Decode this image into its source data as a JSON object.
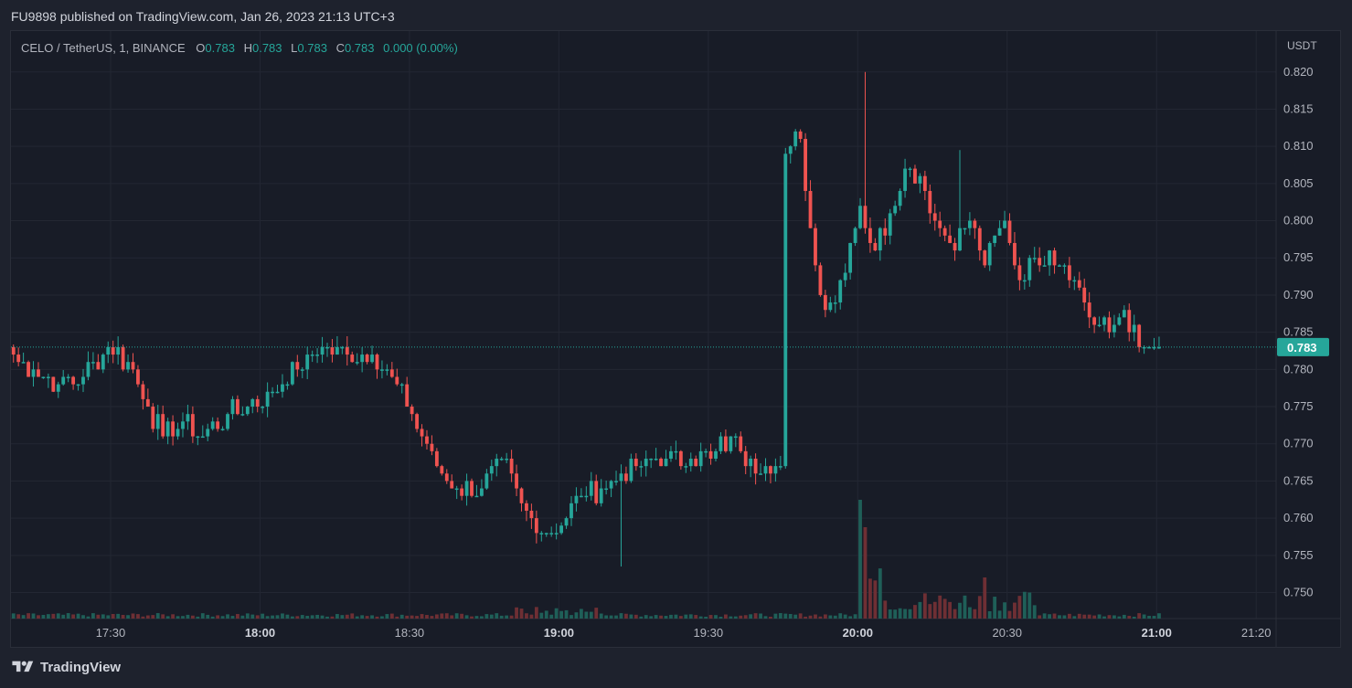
{
  "header": {
    "published": "FU9898 published on TradingView.com, Jan 26, 2023 21:13 UTC+3"
  },
  "legend": {
    "symbol": "CELO / TetherUS, 1, BINANCE",
    "o_label": "O",
    "o_value": "0.783",
    "h_label": "H",
    "h_value": "0.783",
    "l_label": "L",
    "l_value": "0.783",
    "c_label": "C",
    "c_value": "0.783",
    "change": "0.000 (0.00%)"
  },
  "footer": {
    "brand": "TradingView",
    "logo_icon": "tradingview-logo-icon"
  },
  "colors": {
    "background": "#181c27",
    "grid": "#232733",
    "up": "#26a69a",
    "down": "#ef5350",
    "up_volume": "#1f5f58",
    "down_volume": "#6e2f34",
    "text": "#b2b5be",
    "price_label": "#26a69a"
  },
  "chart_data": {
    "type": "candlestick",
    "currency": "USDT",
    "price_axis": {
      "ylim": [
        0.7465,
        0.8255
      ],
      "ticks": [
        "0.820",
        "0.815",
        "0.810",
        "0.805",
        "0.800",
        "0.795",
        "0.790",
        "0.785",
        "0.780",
        "0.775",
        "0.770",
        "0.765",
        "0.760",
        "0.755",
        "0.750"
      ]
    },
    "current_price": "0.783",
    "time_axis": {
      "range_minutes": [
        "17:10",
        "21:24"
      ],
      "ticks": [
        {
          "label": "17:30",
          "bold": false
        },
        {
          "label": "18:00",
          "bold": true
        },
        {
          "label": "18:30",
          "bold": false
        },
        {
          "label": "19:00",
          "bold": true
        },
        {
          "label": "19:30",
          "bold": false
        },
        {
          "label": "20:00",
          "bold": true
        },
        {
          "label": "20:30",
          "bold": false
        },
        {
          "label": "21:00",
          "bold": true
        },
        {
          "label": "21:20",
          "bold": false
        }
      ]
    },
    "close_keypoints": [
      [
        0,
        0.782
      ],
      [
        4,
        0.78
      ],
      [
        9,
        0.778
      ],
      [
        14,
        0.779
      ],
      [
        19,
        0.783
      ],
      [
        23,
        0.781
      ],
      [
        27,
        0.775
      ],
      [
        30,
        0.771
      ],
      [
        34,
        0.773
      ],
      [
        38,
        0.771
      ],
      [
        43,
        0.774
      ],
      [
        47,
        0.775
      ],
      [
        52,
        0.777
      ],
      [
        57,
        0.78
      ],
      [
        62,
        0.783
      ],
      [
        67,
        0.782
      ],
      [
        72,
        0.782
      ],
      [
        75,
        0.78
      ],
      [
        80,
        0.774
      ],
      [
        85,
        0.767
      ],
      [
        89,
        0.764
      ],
      [
        94,
        0.764
      ],
      [
        98,
        0.768
      ],
      [
        102,
        0.762
      ],
      [
        106,
        0.758
      ],
      [
        110,
        0.759
      ],
      [
        114,
        0.763
      ],
      [
        118,
        0.764
      ],
      [
        122,
        0.766
      ],
      [
        126,
        0.767
      ],
      [
        131,
        0.768
      ],
      [
        136,
        0.768
      ],
      [
        140,
        0.768
      ],
      [
        144,
        0.771
      ],
      [
        148,
        0.768
      ],
      [
        152,
        0.766
      ],
      [
        154,
        0.767
      ],
      [
        155,
        0.809
      ],
      [
        156,
        0.81
      ],
      [
        158,
        0.811
      ],
      [
        160,
        0.799
      ],
      [
        162,
        0.79
      ],
      [
        165,
        0.789
      ],
      [
        168,
        0.797
      ],
      [
        170,
        0.802
      ],
      [
        173,
        0.796
      ],
      [
        176,
        0.801
      ],
      [
        179,
        0.807
      ],
      [
        182,
        0.806
      ],
      [
        185,
        0.8
      ],
      [
        188,
        0.797
      ],
      [
        192,
        0.8
      ],
      [
        195,
        0.794
      ],
      [
        199,
        0.8
      ],
      [
        202,
        0.792
      ],
      [
        205,
        0.795
      ],
      [
        208,
        0.796
      ],
      [
        211,
        0.794
      ],
      [
        214,
        0.791
      ],
      [
        217,
        0.786
      ],
      [
        220,
        0.785
      ],
      [
        223,
        0.788
      ],
      [
        226,
        0.783
      ],
      [
        228,
        0.783
      ],
      [
        230,
        0.783
      ]
    ],
    "volume_profile": "low baseline with a large spike at 20:00 and elevated activity 20:00–20:35"
  }
}
